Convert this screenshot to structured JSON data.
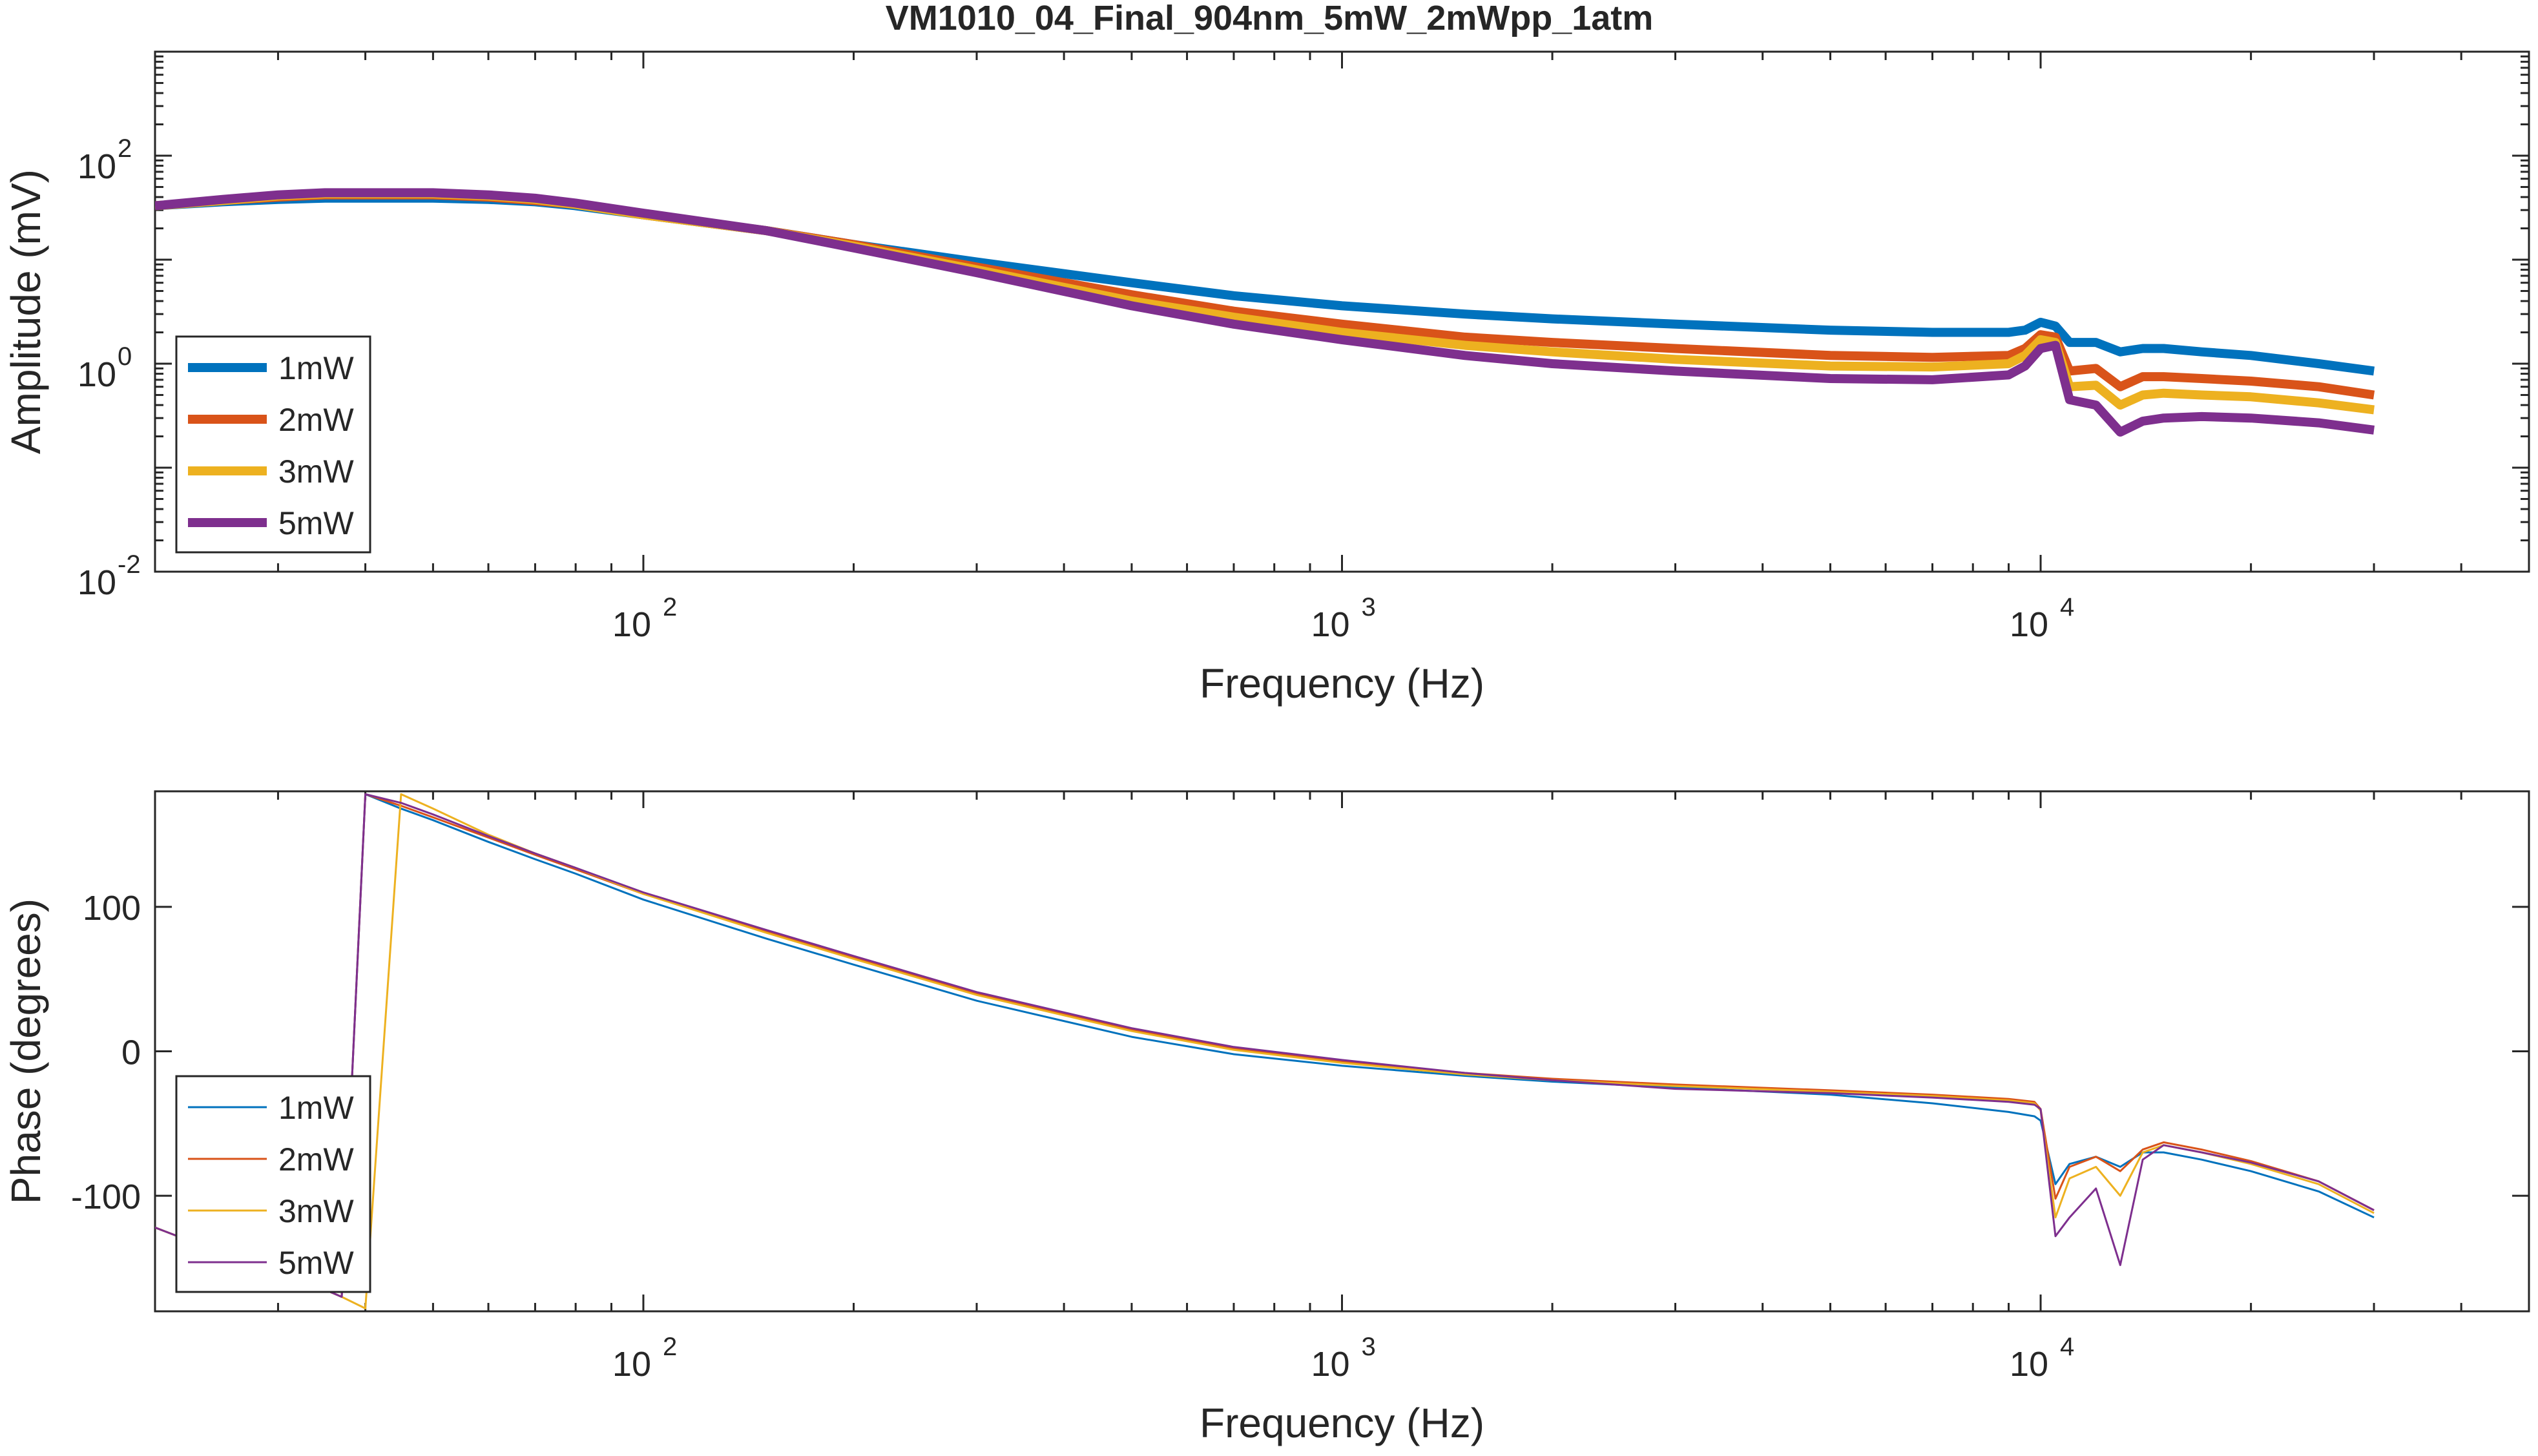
{
  "chart_data": [
    {
      "type": "line",
      "title": "VM1010_04_Final_904nm_5mW_2mWpp_1atm",
      "xlabel": "Frequency (Hz)",
      "ylabel": "Amplitude (mV)",
      "xscale": "log",
      "yscale": "log",
      "xlim": [
        20,
        50000
      ],
      "ylim": [
        0.01,
        1000
      ],
      "xticks": [
        {
          "value": 100,
          "base": "10",
          "exp": "2"
        },
        {
          "value": 1000,
          "base": "10",
          "exp": "3"
        },
        {
          "value": 10000,
          "base": "10",
          "exp": "4"
        }
      ],
      "yticks": [
        {
          "value": 0.01,
          "base": "10",
          "exp": "-2"
        },
        {
          "value": 1,
          "base": "10",
          "exp": "0"
        },
        {
          "value": 100,
          "base": "10",
          "exp": "2"
        }
      ],
      "grid": false,
      "legend": "bottom-left",
      "line_width": "thick",
      "series": [
        {
          "name": "1mW",
          "color": "#0072BD",
          "x": [
            20,
            25,
            30,
            35,
            40,
            50,
            60,
            70,
            80,
            100,
            150,
            200,
            300,
            500,
            700,
            1000,
            1500,
            2000,
            3000,
            5000,
            7000,
            9000,
            9500,
            10000,
            10500,
            11000,
            12000,
            13000,
            14000,
            15000,
            17000,
            20000,
            25000,
            30000
          ],
          "y": [
            33,
            36,
            38,
            39,
            39,
            39,
            38,
            36,
            33,
            27,
            19,
            14,
            9.5,
            6.0,
            4.5,
            3.6,
            3.0,
            2.7,
            2.4,
            2.1,
            2.0,
            2.0,
            2.1,
            2.5,
            2.3,
            1.6,
            1.6,
            1.3,
            1.4,
            1.4,
            1.3,
            1.2,
            1.0,
            0.85
          ]
        },
        {
          "name": "2mW",
          "color": "#D95319",
          "x": [
            20,
            25,
            30,
            35,
            40,
            50,
            60,
            70,
            80,
            100,
            150,
            200,
            300,
            500,
            700,
            1000,
            1500,
            2000,
            3000,
            5000,
            7000,
            9000,
            9500,
            10000,
            10500,
            11000,
            12000,
            13000,
            14000,
            15000,
            17000,
            20000,
            25000,
            30000
          ],
          "y": [
            33,
            37,
            40,
            42,
            42,
            42,
            40,
            37,
            34,
            27,
            19,
            14,
            8.5,
            4.6,
            3.2,
            2.4,
            1.8,
            1.6,
            1.4,
            1.2,
            1.15,
            1.2,
            1.4,
            1.9,
            1.8,
            0.85,
            0.9,
            0.6,
            0.75,
            0.75,
            0.72,
            0.68,
            0.6,
            0.5
          ]
        },
        {
          "name": "3mW",
          "color": "#EDB120",
          "x": [
            20,
            25,
            30,
            35,
            40,
            50,
            60,
            70,
            80,
            100,
            150,
            200,
            300,
            500,
            700,
            1000,
            1500,
            2000,
            3000,
            5000,
            7000,
            9000,
            9500,
            10000,
            10500,
            11000,
            12000,
            13000,
            14000,
            15000,
            17000,
            20000,
            25000,
            30000
          ],
          "y": [
            33,
            37,
            41,
            43,
            43,
            43,
            41,
            38,
            34,
            27,
            19,
            13.5,
            8.0,
            4.0,
            2.8,
            2.0,
            1.5,
            1.3,
            1.1,
            0.95,
            0.93,
            1.0,
            1.2,
            1.7,
            1.6,
            0.6,
            0.62,
            0.4,
            0.5,
            0.52,
            0.5,
            0.48,
            0.42,
            0.36
          ]
        },
        {
          "name": "5mW",
          "color": "#7E2F8E",
          "x": [
            20,
            25,
            30,
            35,
            40,
            50,
            60,
            70,
            80,
            100,
            150,
            200,
            300,
            500,
            700,
            1000,
            1500,
            2000,
            3000,
            5000,
            7000,
            9000,
            9500,
            10000,
            10500,
            11000,
            12000,
            13000,
            14000,
            15000,
            17000,
            20000,
            25000,
            30000
          ],
          "y": [
            33,
            38,
            42,
            44,
            44,
            44,
            42,
            39,
            35,
            28,
            19,
            13,
            7.5,
            3.6,
            2.4,
            1.7,
            1.2,
            1.0,
            0.85,
            0.72,
            0.7,
            0.78,
            0.95,
            1.4,
            1.5,
            0.45,
            0.4,
            0.22,
            0.28,
            0.3,
            0.31,
            0.3,
            0.27,
            0.23
          ]
        }
      ]
    },
    {
      "type": "line",
      "title": "",
      "xlabel": "Frequency (Hz)",
      "ylabel": "Phase (degrees)",
      "xscale": "log",
      "yscale": "linear",
      "xlim": [
        20,
        50000
      ],
      "ylim": [
        -180,
        180
      ],
      "xticks": [
        {
          "value": 100,
          "base": "10",
          "exp": "2"
        },
        {
          "value": 1000,
          "base": "10",
          "exp": "3"
        },
        {
          "value": 10000,
          "base": "10",
          "exp": "4"
        }
      ],
      "yticks": [
        {
          "value": 100,
          "label": "100"
        },
        {
          "value": 0,
          "label": "0"
        },
        {
          "value": -100,
          "label": "-100"
        }
      ],
      "grid": false,
      "legend": "bottom-left",
      "line_width": "thin",
      "series": [
        {
          "name": "1mW",
          "color": "#0072BD",
          "x": [
            20,
            25,
            30,
            35,
            37,
            40,
            45,
            50,
            60,
            70,
            80,
            100,
            150,
            200,
            300,
            500,
            700,
            1000,
            1500,
            2000,
            3000,
            5000,
            7000,
            9000,
            9800,
            10000,
            10500,
            11000,
            12000,
            13000,
            14000,
            15000,
            17000,
            20000,
            25000,
            30000
          ],
          "y": [
            -122,
            -140,
            -155,
            -165,
            -170,
            178,
            168,
            160,
            145,
            133,
            123,
            105,
            78,
            60,
            35,
            10,
            -2,
            -10,
            -17,
            -21,
            -25,
            -30,
            -36,
            -42,
            -45,
            -48,
            -92,
            -78,
            -73,
            -80,
            -70,
            -70,
            -75,
            -83,
            -97,
            -115
          ]
        },
        {
          "name": "2mW",
          "color": "#D95319",
          "x": [
            20,
            25,
            30,
            35,
            37,
            40,
            45,
            50,
            60,
            70,
            80,
            100,
            150,
            200,
            300,
            500,
            700,
            1000,
            1500,
            2000,
            3000,
            5000,
            7000,
            9000,
            9800,
            10000,
            10500,
            11000,
            12000,
            13000,
            14000,
            15000,
            17000,
            20000,
            25000,
            30000
          ],
          "y": [
            -122,
            -140,
            -155,
            -165,
            -170,
            178,
            170,
            162,
            148,
            136,
            126,
            109,
            83,
            65,
            40,
            15,
            2,
            -7,
            -15,
            -19,
            -23,
            -27,
            -30,
            -33,
            -35,
            -40,
            -102,
            -80,
            -73,
            -83,
            -68,
            -63,
            -68,
            -76,
            -90,
            -110
          ]
        },
        {
          "name": "3mW",
          "color": "#EDB120",
          "x": [
            20,
            25,
            30,
            35,
            37,
            40,
            45,
            50,
            60,
            70,
            80,
            100,
            150,
            200,
            300,
            500,
            700,
            1000,
            1500,
            2000,
            3000,
            5000,
            7000,
            9000,
            9800,
            10000,
            10500,
            11000,
            12000,
            13000,
            14000,
            15000,
            17000,
            20000,
            25000,
            30000
          ],
          "y": [
            -122,
            -140,
            -155,
            -165,
            -170,
            -178,
            178,
            168,
            150,
            137,
            127,
            109,
            82,
            64,
            39,
            14,
            1,
            -8,
            -16,
            -20,
            -24,
            -28,
            -31,
            -34,
            -36,
            -41,
            -115,
            -88,
            -80,
            -100,
            -70,
            -65,
            -70,
            -78,
            -92,
            -112
          ]
        },
        {
          "name": "5mW",
          "color": "#7E2F8E",
          "x": [
            20,
            25,
            30,
            35,
            37,
            40,
            45,
            50,
            60,
            70,
            80,
            100,
            150,
            200,
            300,
            500,
            700,
            1000,
            1500,
            2000,
            3000,
            5000,
            7000,
            9000,
            9800,
            10000,
            10500,
            11000,
            12000,
            13000,
            14000,
            15000,
            17000,
            20000,
            25000,
            30000
          ],
          "y": [
            -122,
            -140,
            -155,
            -165,
            -170,
            178,
            172,
            164,
            149,
            137,
            127,
            110,
            84,
            66,
            41,
            16,
            3,
            -6,
            -15,
            -20,
            -26,
            -29,
            -32,
            -35,
            -37,
            -40,
            -128,
            -115,
            -95,
            -148,
            -75,
            -65,
            -70,
            -77,
            -90,
            -110
          ]
        }
      ]
    }
  ]
}
